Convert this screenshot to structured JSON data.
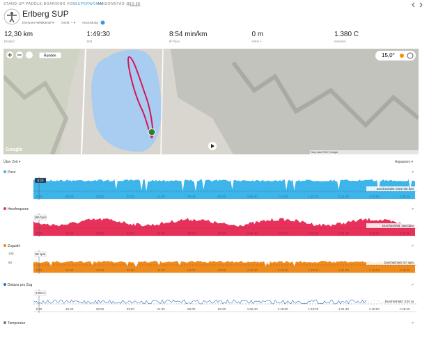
{
  "header": {
    "breadcrumb": "STAND-UP-PADDLE-BOARDING",
    "by": "VON",
    "user": "SUPERWOMAN",
    "when": "AM SONNTAG @",
    "time": "10:58",
    "title": "Erlberg SUP",
    "event_type": "Everyone Wettkampf",
    "device": "Gerät: --",
    "gear": "Ausrüstung"
  },
  "stats": [
    {
      "value": "12,30 km",
      "label": "Distanz"
    },
    {
      "value": "1:49:30",
      "label": "Zeit"
    },
    {
      "value": "8:54 min/km",
      "label": "Ø Pace"
    },
    {
      "value": "0 m",
      "label": "Höhe +"
    },
    {
      "value": "1.380 C",
      "label": "Kalorien"
    }
  ],
  "map": {
    "laps": "Runden",
    "temperature": "15,0°",
    "brand": "Google",
    "attribution": "Map data ©2017 Google"
  },
  "toolbar": {
    "mode": "Über Zeit",
    "adjust": "Anpassen"
  },
  "time_axis": [
    "8:20",
    "16:40",
    "25:00",
    "33:20",
    "41:40",
    "50:00",
    "58:20",
    "1:06:40",
    "1:15:00",
    "1:23:20",
    "1:31:40",
    "1:40:00",
    "1:48:20"
  ],
  "panels": [
    {
      "title": "Pace",
      "color": "#3db4ea",
      "marker": "8:20",
      "average": "Durchschnitt: 8:54 min /km",
      "style": "area"
    },
    {
      "title": "Herzfrequenz",
      "color": "#e8315a",
      "marker": "166 bpm",
      "average": "Durchschnitt: 160 bpm",
      "style": "wave"
    },
    {
      "title": "Zugzahl",
      "color": "#ef8a1d",
      "marker": "58 spm",
      "average": "Durchschnitt: 57 spm",
      "style": "half",
      "y_labels": [
        "100",
        "50"
      ]
    },
    {
      "title": "Distanz pro Zug",
      "color": "#2f6fc6",
      "marker": "3,03 m",
      "average": "Durchschnitt: 3,07 m",
      "style": "line"
    },
    {
      "title": "Temperatur",
      "color": "#777777",
      "style": "none"
    }
  ]
}
